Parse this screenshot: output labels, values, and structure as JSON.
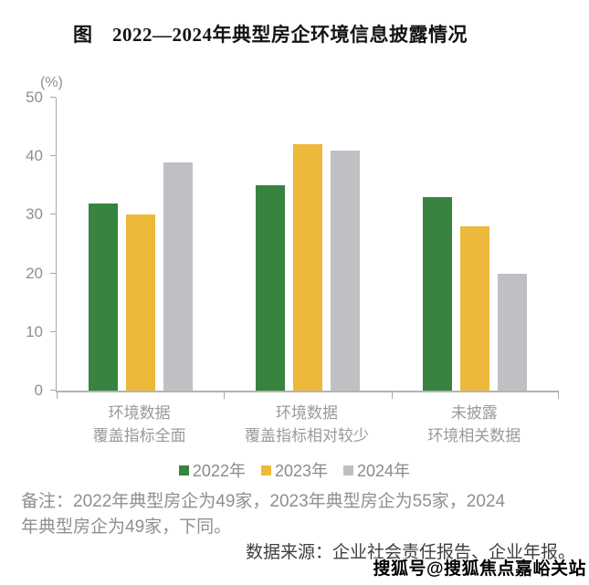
{
  "title": "图　2022—2024年典型房企环境信息披露情况",
  "chart_data": {
    "type": "bar",
    "title": "图 2022—2024年典型房企环境信息披露情况",
    "unit_label": "(%)",
    "categories": [
      [
        "环境数据",
        "覆盖指标全面"
      ],
      [
        "环境数据",
        "覆盖指标相对较少"
      ],
      [
        "未披露",
        "环境相关数据"
      ]
    ],
    "series": [
      {
        "name": "2022年",
        "color": "#37833F",
        "values": [
          32,
          35,
          33
        ]
      },
      {
        "name": "2023年",
        "color": "#ECB93B",
        "values": [
          30,
          42,
          28
        ]
      },
      {
        "name": "2024年",
        "color": "#BFC0C3",
        "values": [
          39,
          41,
          20
        ]
      }
    ],
    "ylim": [
      0,
      50
    ],
    "yticks": [
      0,
      10,
      20,
      30,
      40,
      50
    ],
    "grid": false,
    "legend_position": "bottom"
  },
  "note": {
    "lines": [
      "备注：2022年典型房企为49家，2023年典型房企为55家，2024",
      "年典型房企为49家，下同。"
    ]
  },
  "source": "数据来源：企业社会责任报告、企业年报。",
  "watermark": "搜狐号@搜狐焦点嘉峪关站"
}
